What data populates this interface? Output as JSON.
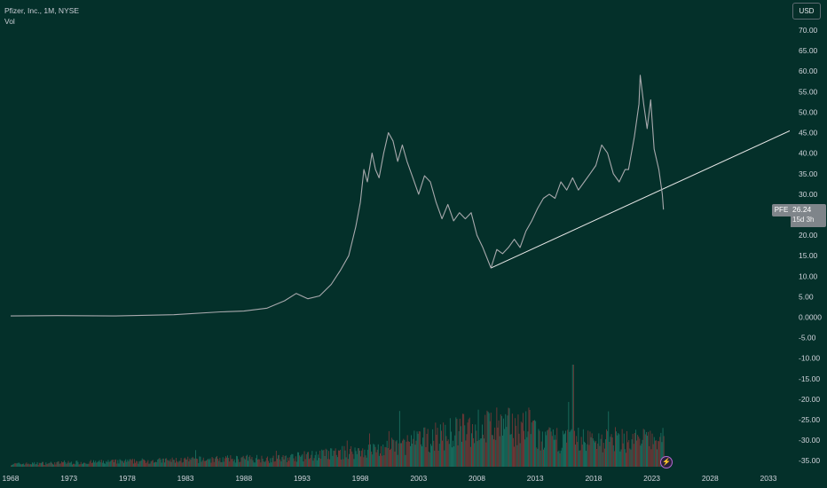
{
  "legend": {
    "title": "Pfizer, Inc., 1M, NYSE",
    "vol": "Vol"
  },
  "currency": "USD",
  "price_badge": {
    "symbol": "PFE",
    "price": "26.24",
    "countdown": "15d 3h"
  },
  "colors": {
    "background": "#04302a",
    "line": "#a8a9ad",
    "trendline": "#e8e8e8",
    "vol_up": "#1f7a6a",
    "vol_down": "#8a3a3a",
    "badge": "#7f858a"
  },
  "chart_data": {
    "type": "line",
    "price_ticks": [
      "70.00",
      "65.00",
      "60.00",
      "55.00",
      "50.00",
      "45.00",
      "40.00",
      "35.00",
      "30.00",
      "25.00",
      "20.00",
      "15.00",
      "10.00",
      "5.00",
      "0.0000",
      "-5.00",
      "-10.00",
      "-15.00",
      "-20.00",
      "-25.00",
      "-30.00",
      "-35.00"
    ],
    "price_tick_values": [
      70,
      65,
      60,
      55,
      50,
      45,
      40,
      35,
      30,
      25,
      20,
      15,
      10,
      5,
      0,
      -5,
      -10,
      -15,
      -20,
      -25,
      -30,
      -35
    ],
    "time_ticks": [
      "1968",
      "1973",
      "1978",
      "1983",
      "1988",
      "1993",
      "1998",
      "2003",
      "2008",
      "2013",
      "2018",
      "2023",
      "2028",
      "2033"
    ],
    "time_tick_years": [
      1968,
      1973,
      1978,
      1983,
      1988,
      1993,
      1998,
      2003,
      2008,
      2013,
      2018,
      2023,
      2028,
      2033
    ],
    "ylim": [
      -37,
      75
    ],
    "xlim": [
      1968,
      2035.7
    ],
    "series": [
      {
        "points": [
          [
            1968.0,
            0.3
          ],
          [
            1972.0,
            0.4
          ],
          [
            1977.0,
            0.3
          ],
          [
            1982.0,
            0.6
          ],
          [
            1986.0,
            1.3
          ],
          [
            1988.0,
            1.5
          ],
          [
            1990.0,
            2.2
          ],
          [
            1991.5,
            4.0
          ],
          [
            1992.5,
            5.8
          ],
          [
            1993.5,
            4.5
          ],
          [
            1994.5,
            5.2
          ],
          [
            1995.5,
            8.0
          ],
          [
            1996.3,
            11.5
          ],
          [
            1997.0,
            15.0
          ],
          [
            1997.6,
            22.0
          ],
          [
            1998.0,
            28.0
          ],
          [
            1998.3,
            36.0
          ],
          [
            1998.6,
            33.0
          ],
          [
            1999.0,
            40.0
          ],
          [
            1999.3,
            36.0
          ],
          [
            1999.6,
            34.0
          ],
          [
            2000.0,
            40.0
          ],
          [
            2000.4,
            45.0
          ],
          [
            2000.8,
            43.0
          ],
          [
            2001.2,
            38.0
          ],
          [
            2001.6,
            42.0
          ],
          [
            2002.0,
            38.0
          ],
          [
            2002.5,
            34.0
          ],
          [
            2003.0,
            30.0
          ],
          [
            2003.5,
            34.5
          ],
          [
            2004.0,
            33.0
          ],
          [
            2004.5,
            28.0
          ],
          [
            2005.0,
            24.0
          ],
          [
            2005.5,
            27.5
          ],
          [
            2006.0,
            23.5
          ],
          [
            2006.5,
            25.5
          ],
          [
            2007.0,
            24.0
          ],
          [
            2007.5,
            25.5
          ],
          [
            2008.0,
            20.0
          ],
          [
            2008.5,
            17.0
          ],
          [
            2009.2,
            12.0
          ],
          [
            2009.7,
            16.5
          ],
          [
            2010.2,
            15.5
          ],
          [
            2010.7,
            17.0
          ],
          [
            2011.2,
            19.0
          ],
          [
            2011.7,
            17.0
          ],
          [
            2012.2,
            21.0
          ],
          [
            2012.7,
            23.5
          ],
          [
            2013.2,
            26.5
          ],
          [
            2013.7,
            29.0
          ],
          [
            2014.2,
            30.0
          ],
          [
            2014.7,
            29.0
          ],
          [
            2015.2,
            33.0
          ],
          [
            2015.7,
            31.0
          ],
          [
            2016.2,
            34.0
          ],
          [
            2016.7,
            31.0
          ],
          [
            2017.2,
            33.0
          ],
          [
            2017.7,
            35.0
          ],
          [
            2018.2,
            37.0
          ],
          [
            2018.7,
            42.0
          ],
          [
            2019.2,
            40.0
          ],
          [
            2019.7,
            35.0
          ],
          [
            2020.2,
            33.0
          ],
          [
            2020.7,
            36.0
          ],
          [
            2021.0,
            36.0
          ],
          [
            2021.5,
            44.0
          ],
          [
            2021.9,
            52.0
          ],
          [
            2022.0,
            59.0
          ],
          [
            2022.3,
            52.0
          ],
          [
            2022.6,
            46.0
          ],
          [
            2022.9,
            53.0
          ],
          [
            2023.2,
            41.0
          ],
          [
            2023.6,
            36.0
          ],
          [
            2023.9,
            30.0
          ],
          [
            2024.0,
            26.24
          ]
        ]
      },
      {
        "type": "trendline",
        "points": [
          [
            2009.2,
            12.0
          ],
          [
            2035.7,
            46.6
          ]
        ]
      }
    ]
  }
}
